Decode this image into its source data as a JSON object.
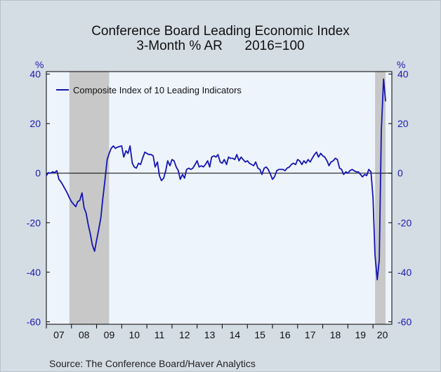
{
  "title_line1": "Conference Board Leading Economic Index",
  "title_line2": "3-Month % AR      2016=100",
  "source": "Source:  The Conference Board/Haver Analytics",
  "chart_data": {
    "type": "line",
    "left_axis_unit": "%",
    "right_axis_unit": "%",
    "y_ticks": [
      40,
      20,
      0,
      -20,
      -40,
      -60
    ],
    "ylim": [
      -61,
      41
    ],
    "x_range": [
      2007.0,
      2020.75
    ],
    "x_tick_labels": [
      "07",
      "08",
      "09",
      "10",
      "11",
      "12",
      "13",
      "14",
      "15",
      "16",
      "17",
      "18",
      "19",
      "20"
    ],
    "recessions": [
      [
        2007.917,
        2009.5
      ],
      [
        2020.083,
        2020.5
      ]
    ],
    "colors": {
      "series": "#1414b4",
      "plot_bg": "#eef4fc",
      "recession": "#c8c8c8",
      "axis_text": "#1a1ab0"
    },
    "legend_position": "top-left",
    "series": [
      {
        "name": "Composite Index of 10 Leading Indicators",
        "points": [
          [
            2007.0,
            -1.0
          ],
          [
            2007.08,
            0.2
          ],
          [
            2007.17,
            0.0
          ],
          [
            2007.25,
            0.5
          ],
          [
            2007.33,
            0.2
          ],
          [
            2007.42,
            1.0
          ],
          [
            2007.5,
            -2.5
          ],
          [
            2007.58,
            -3.5
          ],
          [
            2007.67,
            -5.0
          ],
          [
            2007.75,
            -6.5
          ],
          [
            2007.83,
            -8.0
          ],
          [
            2007.92,
            -10.0
          ],
          [
            2008.0,
            -11.5
          ],
          [
            2008.08,
            -12.5
          ],
          [
            2008.17,
            -13.5
          ],
          [
            2008.25,
            -11.5
          ],
          [
            2008.33,
            -11.0
          ],
          [
            2008.42,
            -8.0
          ],
          [
            2008.5,
            -14.0
          ],
          [
            2008.58,
            -16.0
          ],
          [
            2008.67,
            -21.0
          ],
          [
            2008.75,
            -24.5
          ],
          [
            2008.83,
            -29.0
          ],
          [
            2008.92,
            -31.5
          ],
          [
            2009.0,
            -27.0
          ],
          [
            2009.08,
            -23.0
          ],
          [
            2009.17,
            -18.0
          ],
          [
            2009.25,
            -10.0
          ],
          [
            2009.33,
            -3.0
          ],
          [
            2009.42,
            5.5
          ],
          [
            2009.5,
            8.0
          ],
          [
            2009.58,
            10.0
          ],
          [
            2009.67,
            11.0
          ],
          [
            2009.75,
            10.0
          ],
          [
            2009.83,
            10.5
          ],
          [
            2009.92,
            10.8
          ],
          [
            2010.0,
            11.0
          ],
          [
            2010.08,
            6.5
          ],
          [
            2010.17,
            9.0
          ],
          [
            2010.25,
            8.0
          ],
          [
            2010.33,
            11.0
          ],
          [
            2010.42,
            4.0
          ],
          [
            2010.5,
            2.5
          ],
          [
            2010.58,
            2.0
          ],
          [
            2010.67,
            4.0
          ],
          [
            2010.75,
            3.5
          ],
          [
            2010.83,
            6.0
          ],
          [
            2010.92,
            8.5
          ],
          [
            2011.0,
            8.0
          ],
          [
            2011.08,
            7.5
          ],
          [
            2011.17,
            7.5
          ],
          [
            2011.25,
            7.0
          ],
          [
            2011.33,
            2.5
          ],
          [
            2011.42,
            4.5
          ],
          [
            2011.5,
            -1.0
          ],
          [
            2011.58,
            -3.0
          ],
          [
            2011.67,
            -2.0
          ],
          [
            2011.75,
            1.0
          ],
          [
            2011.83,
            5.0
          ],
          [
            2011.92,
            3.0
          ],
          [
            2012.0,
            5.5
          ],
          [
            2012.08,
            5.0
          ],
          [
            2012.17,
            2.5
          ],
          [
            2012.25,
            1.0
          ],
          [
            2012.33,
            -2.5
          ],
          [
            2012.42,
            -0.5
          ],
          [
            2012.5,
            -2.0
          ],
          [
            2012.58,
            1.5
          ],
          [
            2012.67,
            2.0
          ],
          [
            2012.75,
            1.5
          ],
          [
            2012.83,
            2.0
          ],
          [
            2012.92,
            3.5
          ],
          [
            2013.0,
            5.0
          ],
          [
            2013.08,
            2.5
          ],
          [
            2013.17,
            3.0
          ],
          [
            2013.25,
            2.5
          ],
          [
            2013.33,
            3.5
          ],
          [
            2013.42,
            5.0
          ],
          [
            2013.5,
            2.5
          ],
          [
            2013.58,
            6.5
          ],
          [
            2013.67,
            7.0
          ],
          [
            2013.75,
            6.5
          ],
          [
            2013.83,
            7.5
          ],
          [
            2013.92,
            4.5
          ],
          [
            2014.0,
            4.0
          ],
          [
            2014.08,
            5.5
          ],
          [
            2014.17,
            3.5
          ],
          [
            2014.25,
            6.5
          ],
          [
            2014.33,
            6.0
          ],
          [
            2014.42,
            6.0
          ],
          [
            2014.5,
            5.5
          ],
          [
            2014.58,
            7.5
          ],
          [
            2014.67,
            5.0
          ],
          [
            2014.75,
            6.5
          ],
          [
            2014.83,
            5.5
          ],
          [
            2014.92,
            4.5
          ],
          [
            2015.0,
            5.0
          ],
          [
            2015.08,
            4.0
          ],
          [
            2015.17,
            3.5
          ],
          [
            2015.25,
            3.0
          ],
          [
            2015.33,
            4.5
          ],
          [
            2015.42,
            2.0
          ],
          [
            2015.5,
            1.5
          ],
          [
            2015.58,
            -0.5
          ],
          [
            2015.67,
            2.0
          ],
          [
            2015.75,
            2.5
          ],
          [
            2015.83,
            1.5
          ],
          [
            2015.92,
            -0.5
          ],
          [
            2016.0,
            -2.5
          ],
          [
            2016.08,
            -1.5
          ],
          [
            2016.17,
            1.0
          ],
          [
            2016.25,
            1.5
          ],
          [
            2016.33,
            1.5
          ],
          [
            2016.42,
            1.5
          ],
          [
            2016.5,
            1.0
          ],
          [
            2016.58,
            2.0
          ],
          [
            2016.67,
            2.5
          ],
          [
            2016.75,
            3.5
          ],
          [
            2016.83,
            4.0
          ],
          [
            2016.92,
            3.5
          ],
          [
            2017.0,
            5.5
          ],
          [
            2017.08,
            5.0
          ],
          [
            2017.17,
            3.5
          ],
          [
            2017.25,
            5.0
          ],
          [
            2017.33,
            4.0
          ],
          [
            2017.42,
            5.5
          ],
          [
            2017.5,
            4.5
          ],
          [
            2017.58,
            6.0
          ],
          [
            2017.67,
            7.5
          ],
          [
            2017.75,
            8.5
          ],
          [
            2017.83,
            6.5
          ],
          [
            2017.92,
            8.0
          ],
          [
            2018.0,
            7.0
          ],
          [
            2018.08,
            6.5
          ],
          [
            2018.17,
            5.0
          ],
          [
            2018.25,
            3.0
          ],
          [
            2018.33,
            4.5
          ],
          [
            2018.42,
            5.0
          ],
          [
            2018.5,
            6.0
          ],
          [
            2018.58,
            5.5
          ],
          [
            2018.67,
            2.0
          ],
          [
            2018.75,
            1.5
          ],
          [
            2018.83,
            -0.5
          ],
          [
            2018.92,
            0.5
          ],
          [
            2019.0,
            0.0
          ],
          [
            2019.08,
            1.0
          ],
          [
            2019.17,
            1.5
          ],
          [
            2019.25,
            1.0
          ],
          [
            2019.33,
            0.5
          ],
          [
            2019.42,
            0.5
          ],
          [
            2019.5,
            -0.5
          ],
          [
            2019.58,
            -1.5
          ],
          [
            2019.67,
            -0.5
          ],
          [
            2019.75,
            -1.0
          ],
          [
            2019.83,
            1.5
          ],
          [
            2019.92,
            0.5
          ],
          [
            2020.0,
            -10.0
          ],
          [
            2020.08,
            -33.0
          ],
          [
            2020.17,
            -43.0
          ],
          [
            2020.25,
            -35.0
          ],
          [
            2020.33,
            17.0
          ],
          [
            2020.42,
            38.0
          ],
          [
            2020.5,
            29.0
          ]
        ]
      }
    ]
  }
}
